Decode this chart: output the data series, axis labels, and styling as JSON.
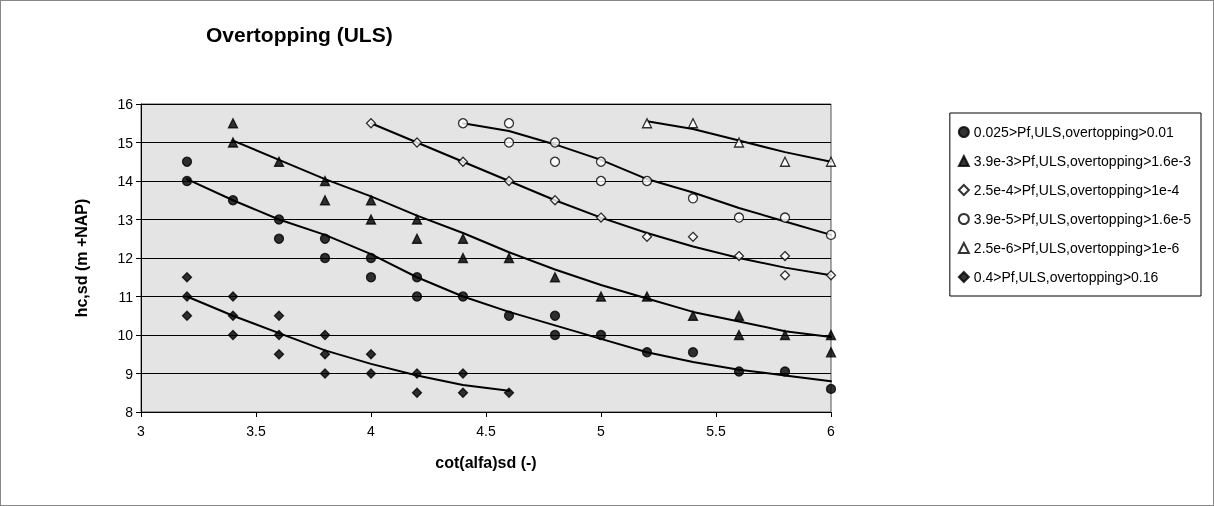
{
  "chart_data": {
    "type": "scatter",
    "title": "Overtopping (ULS)",
    "xlabel": "cot(alfa)sd (-)",
    "ylabel": "hc,sd (m +NAP)",
    "xlim": [
      3,
      6
    ],
    "xticks": [
      3,
      3.5,
      4,
      4.5,
      5,
      5.5,
      6
    ],
    "ylim": [
      8,
      16
    ],
    "yticks": [
      8,
      9,
      10,
      11,
      12,
      13,
      14,
      15,
      16
    ],
    "grid": "y",
    "legend": "right",
    "series": [
      {
        "name": "0.025>Pf,ULS,overtopping>0.01",
        "marker": "circle",
        "color": "#000000",
        "x": [
          3.2,
          3.2,
          3.4,
          3.6,
          3.6,
          3.8,
          3.8,
          4,
          4,
          4.2,
          4.2,
          4.4,
          4.6,
          4.8,
          4.8,
          5,
          5.2,
          5.4,
          5.6,
          5.8,
          6
        ],
        "values": [
          14.5,
          14,
          13.5,
          13,
          12.5,
          12.5,
          12,
          12,
          11.5,
          11.5,
          11,
          11,
          10.5,
          10.5,
          10,
          10,
          9.55,
          9.55,
          9.05,
          9.05,
          8.6
        ]
      },
      {
        "name": "3.9e-3>Pf,ULS,overtopping>1.6e-3",
        "marker": "triangle",
        "color": "#000000",
        "x": [
          3.4,
          3.4,
          3.6,
          3.8,
          3.8,
          4,
          4,
          4.2,
          4.2,
          4.4,
          4.4,
          4.6,
          4.8,
          5,
          5.2,
          5.4,
          5.6,
          5.6,
          5.8,
          6,
          6
        ],
        "values": [
          15.5,
          15,
          14.5,
          14,
          13.5,
          13.5,
          13,
          13,
          12.5,
          12.5,
          12,
          12,
          11.5,
          11,
          11,
          10.5,
          10.5,
          10,
          10,
          10,
          9.55
        ]
      },
      {
        "name": "2.5e-4>Pf,ULS,overtopping>1e-4",
        "marker": "diamond",
        "color": "#ffffff",
        "x": [
          4,
          4.2,
          4.4,
          4.6,
          4.8,
          5,
          5.2,
          5.4,
          5.6,
          5.8,
          5.8,
          6
        ],
        "values": [
          15.5,
          15,
          14.5,
          14,
          13.5,
          13.05,
          12.55,
          12.55,
          12.05,
          12.05,
          11.55,
          11.55
        ]
      },
      {
        "name": "3.9e-5>Pf,ULS,overtopping>1.6e-5",
        "marker": "circle",
        "color": "#ffffff",
        "x": [
          4.4,
          4.6,
          4.6,
          4.8,
          4.8,
          5,
          5,
          5.2,
          5.4,
          5.6,
          5.8,
          6
        ],
        "values": [
          15.5,
          15.5,
          15,
          15,
          14.5,
          14.5,
          14,
          14,
          13.55,
          13.05,
          13.05,
          12.6
        ]
      },
      {
        "name": "2.5e-6>Pf,ULS,overtopping>1e-6",
        "marker": "triangle",
        "color": "#ffffff",
        "x": [
          5.2,
          5.4,
          5.6,
          5.8,
          6
        ],
        "values": [
          15.5,
          15.5,
          15,
          14.5,
          14.5
        ]
      },
      {
        "name": "0.4>Pf,ULS,overtopping>0.16",
        "marker": "diamond",
        "color": "#000000",
        "x": [
          3.2,
          3.2,
          3.2,
          3.4,
          3.4,
          3.4,
          3.6,
          3.6,
          3.6,
          3.8,
          3.8,
          3.8,
          4,
          4,
          4.2,
          4.2,
          4.4,
          4.4,
          4.6
        ],
        "values": [
          11.5,
          11,
          10.5,
          11,
          10.5,
          10,
          10.5,
          10,
          9.5,
          10,
          9.5,
          9,
          9.5,
          9,
          9,
          8.5,
          9,
          8.5,
          8.5
        ]
      },
      {
        "type": "line",
        "marker": "none",
        "color": "#000000",
        "x": [
          3.2,
          3.4,
          3.6,
          3.8,
          4,
          4.2,
          4.4,
          4.6,
          4.8,
          5,
          5.2,
          5.4,
          5.6,
          5.8,
          6
        ],
        "values": [
          14.05,
          13.5,
          13,
          12.6,
          12.1,
          11.5,
          11,
          10.6,
          10.25,
          9.9,
          9.55,
          9.3,
          9.1,
          8.95,
          8.8
        ]
      },
      {
        "type": "line",
        "marker": "none",
        "color": "#000000",
        "x": [
          3.4,
          3.6,
          3.8,
          4,
          4.2,
          4.4,
          4.6,
          4.8,
          5,
          5.2,
          5.4,
          5.6,
          5.8,
          6
        ],
        "values": [
          15.05,
          14.55,
          14.05,
          13.6,
          13.1,
          12.65,
          12.15,
          11.7,
          11.3,
          10.95,
          10.6,
          10.35,
          10.1,
          9.95
        ]
      },
      {
        "type": "line",
        "marker": "none",
        "color": "#000000",
        "x": [
          4,
          4.2,
          4.4,
          4.6,
          4.8,
          5,
          5.2,
          5.4,
          5.6,
          5.8,
          6
        ],
        "values": [
          15.5,
          15,
          14.5,
          14,
          13.5,
          13.05,
          12.65,
          12.3,
          12,
          11.75,
          11.55
        ]
      },
      {
        "type": "line",
        "marker": "none",
        "color": "#000000",
        "x": [
          4.4,
          4.6,
          4.8,
          5,
          5.2,
          5.4,
          5.6,
          5.8,
          6
        ],
        "values": [
          15.5,
          15.3,
          14.95,
          14.55,
          14.05,
          13.7,
          13.3,
          12.95,
          12.6
        ]
      },
      {
        "type": "line",
        "marker": "none",
        "color": "#000000",
        "x": [
          5.2,
          5.4,
          5.6,
          5.8,
          6
        ],
        "values": [
          15.55,
          15.35,
          15.05,
          14.75,
          14.5
        ]
      },
      {
        "type": "line",
        "marker": "none",
        "color": "#000000",
        "x": [
          3.2,
          3.4,
          3.6,
          3.8,
          4,
          4.2,
          4.4,
          4.6
        ],
        "values": [
          11,
          10.5,
          10.05,
          9.6,
          9.25,
          8.95,
          8.7,
          8.55
        ]
      }
    ]
  }
}
